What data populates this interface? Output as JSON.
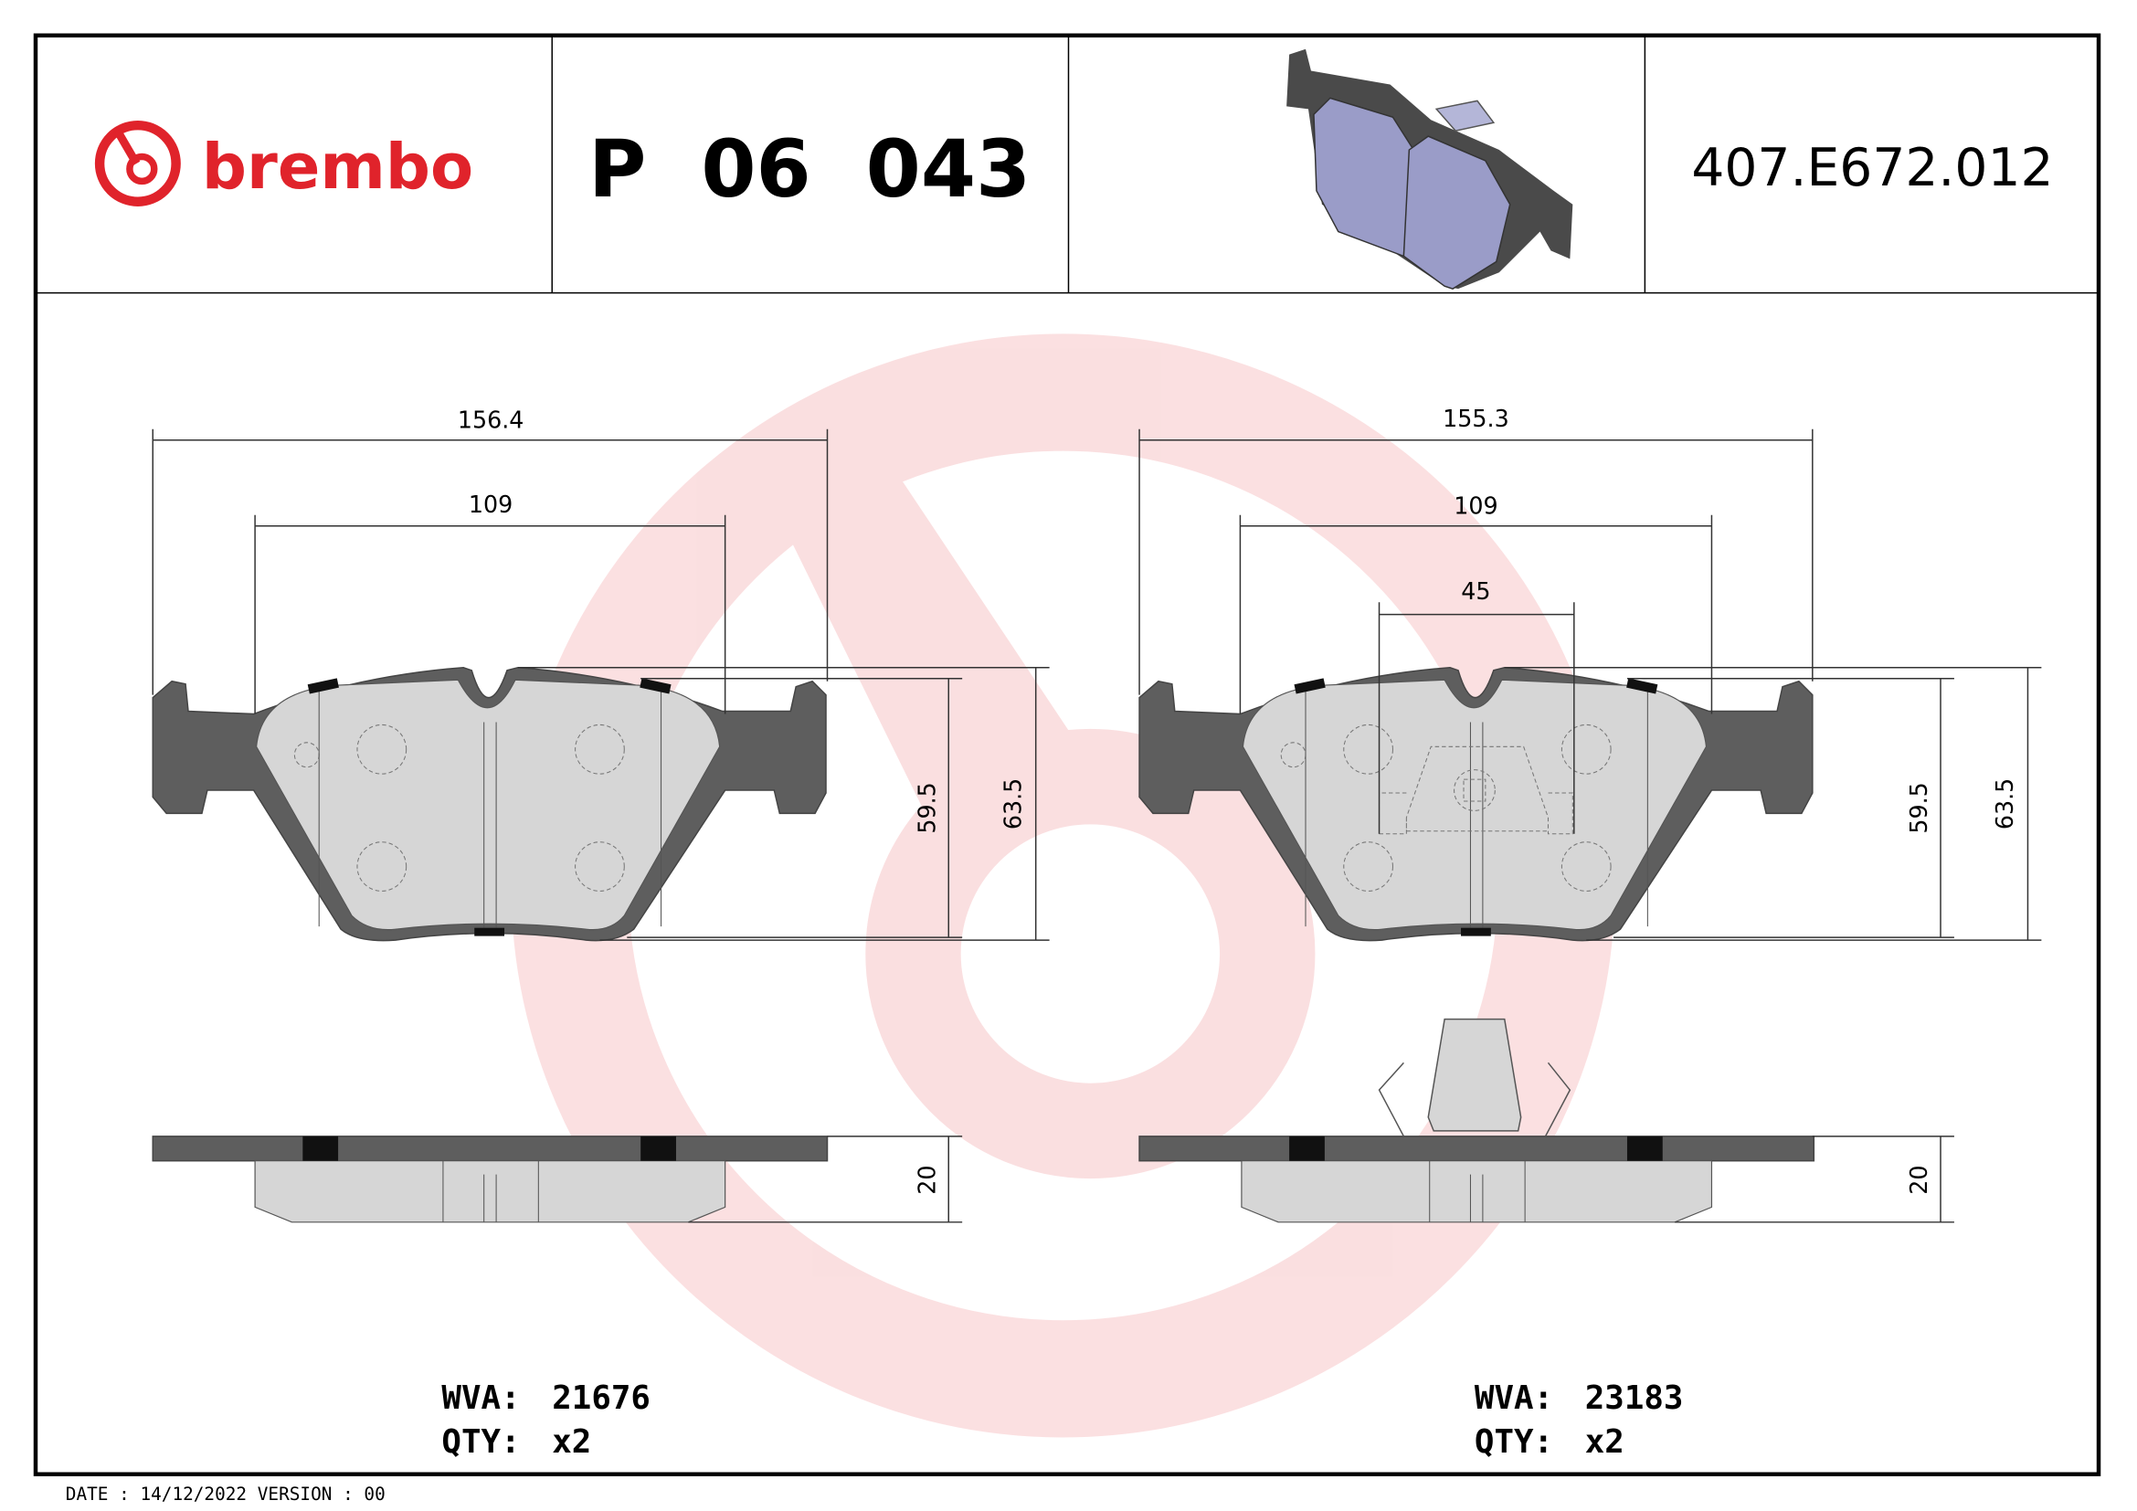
{
  "header": {
    "brand": "brembo",
    "part_number": "P 06 043",
    "reference": "407.E672.012"
  },
  "left_pad": {
    "dim_overall_width": "156.4",
    "dim_inner_width": "109",
    "dim_height_inner": "59.5",
    "dim_height_outer": "63.5",
    "dim_thickness": "20",
    "wva_label": "WVA:",
    "wva_value": "21676",
    "qty_label": "QTY:",
    "qty_value": "x2"
  },
  "right_pad": {
    "dim_overall_width": "155.3",
    "dim_inner_width": "109",
    "dim_center_width": "45",
    "dim_height_inner": "59.5",
    "dim_height_outer": "63.5",
    "dim_thickness": "20",
    "wva_label": "WVA:",
    "wva_value": "23183",
    "qty_label": "QTY:",
    "qty_value": "x2"
  },
  "footer": {
    "date_text": "DATE : 14/12/2022 VERSION : 00"
  },
  "colors": {
    "brand_red": "#e0232b",
    "plate": "#5e5e5e",
    "friction": "#d6d6d6",
    "pad_photo": "#9a9cc8"
  }
}
